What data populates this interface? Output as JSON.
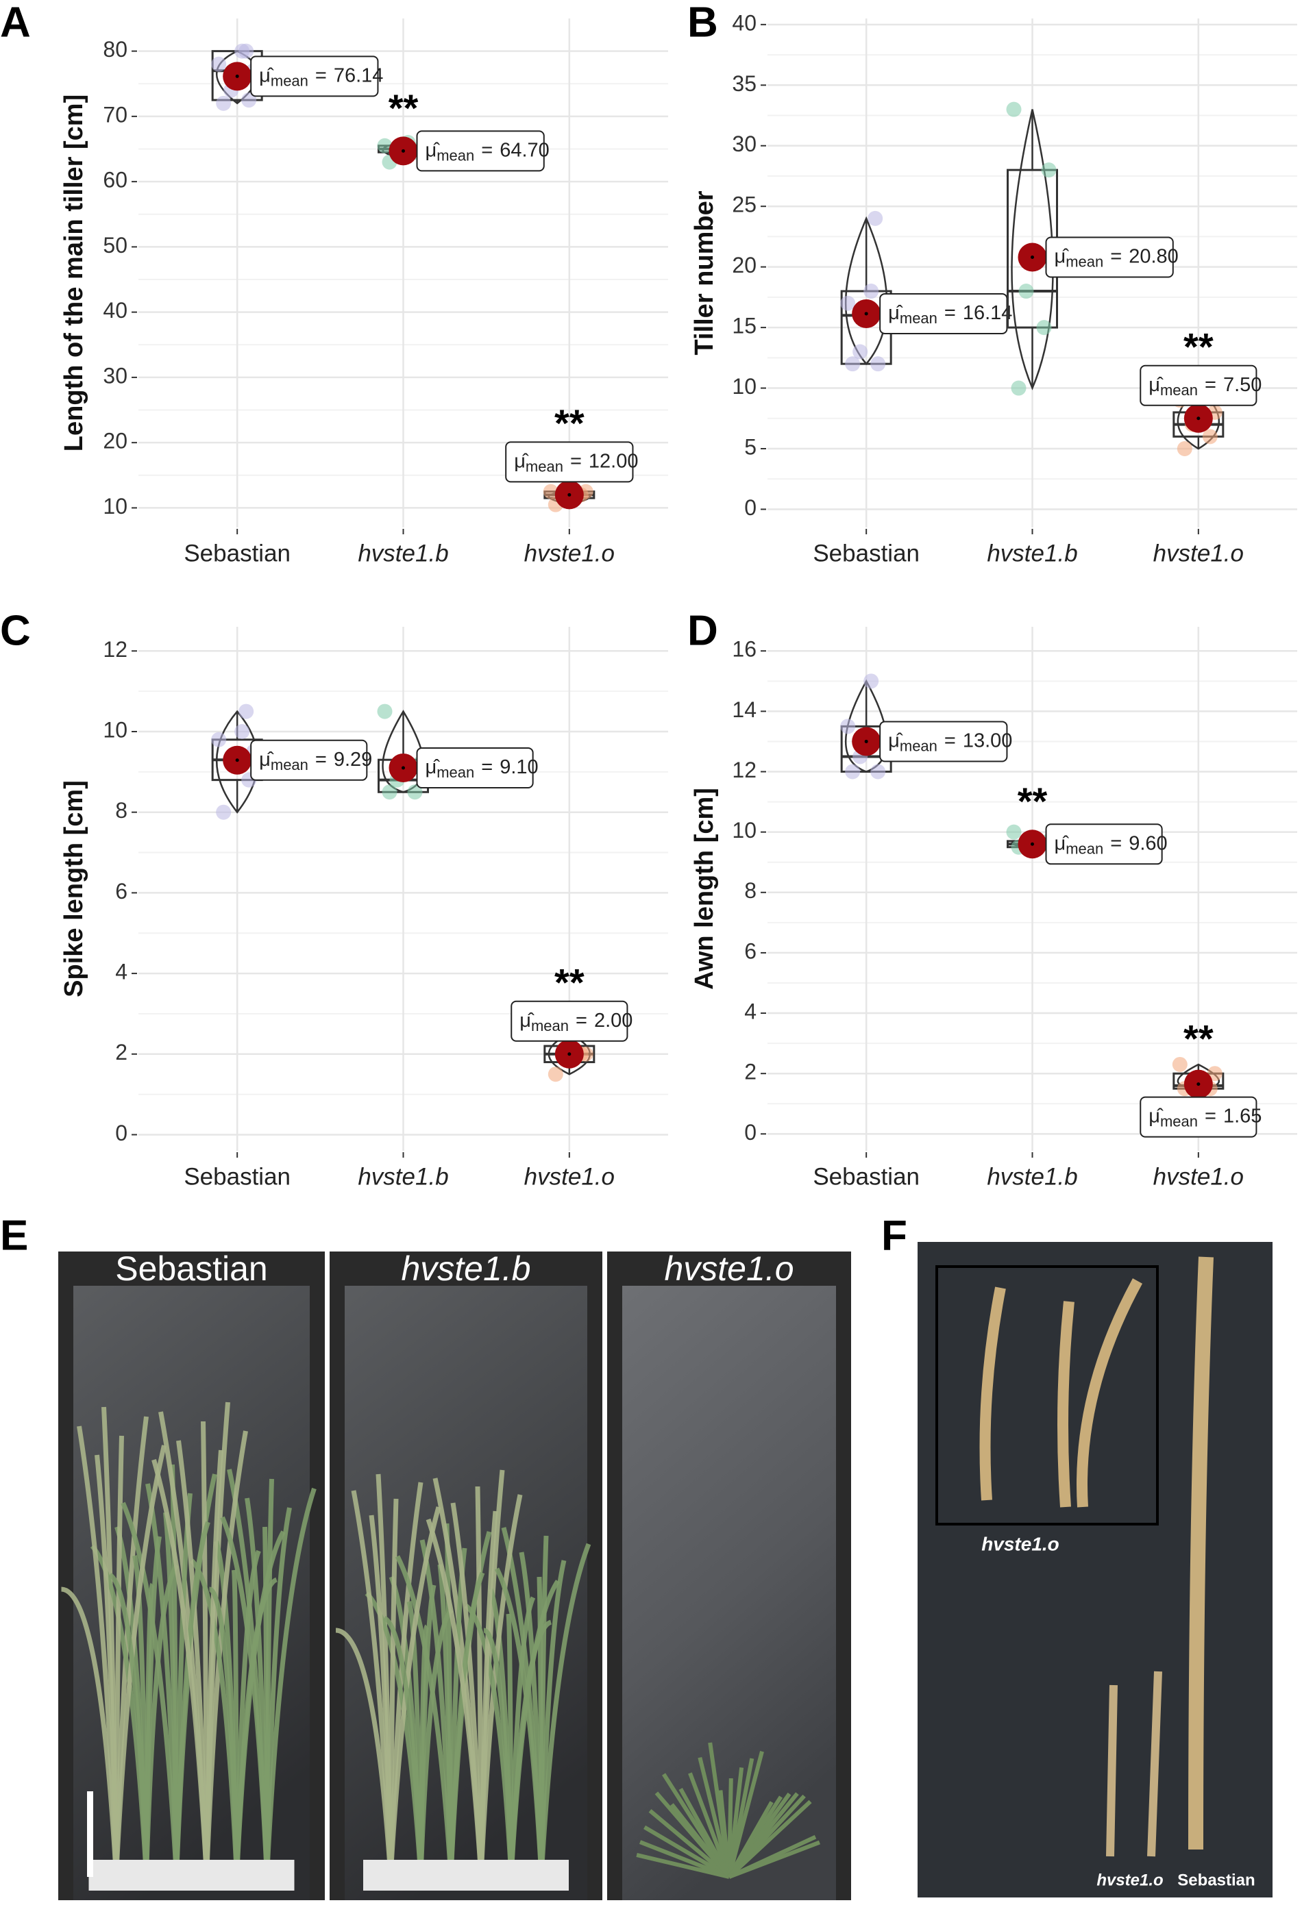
{
  "chart_data": [
    {
      "type": "box",
      "panel": "A",
      "ylabel": "Length of the main tiller [cm]",
      "categories": [
        "Sebastian",
        "hvste1.b",
        "hvste1.o"
      ],
      "values": [
        76.14,
        64.7,
        12
      ],
      "value_labels": [
        "76.14",
        "64.70",
        "12.00"
      ],
      "mean_symbol": "μ̂",
      "mean_subscript": "mean",
      "mean_equals": "=",
      "significance": [
        null,
        "**",
        "**"
      ],
      "boxes": [
        {
          "min": 72,
          "q1": 72.5,
          "median": 77,
          "q3": 80,
          "max": 80
        },
        {
          "min": 63.5,
          "q1": 64.5,
          "median": 65,
          "q3": 65.5,
          "max": 66
        },
        {
          "min": 10.5,
          "q1": 11.5,
          "median": 12,
          "q3": 12.5,
          "max": 12.5
        }
      ],
      "points": [
        [
          72,
          72.5,
          74,
          77,
          78,
          80,
          80
        ],
        [
          63,
          64.5,
          65,
          65,
          65.5,
          66
        ],
        [
          10.5,
          12,
          12,
          12.5,
          12.5
        ]
      ],
      "point_colors": [
        "#b9b6e2",
        "#7fcaa9",
        "#f2a67a"
      ],
      "mean_color": "#a3090f",
      "ylim": [
        7,
        85
      ],
      "yticks": [
        10,
        20,
        30,
        40,
        50,
        60,
        70,
        80
      ],
      "grid": true
    },
    {
      "type": "box",
      "panel": "B",
      "ylabel": "Tiller number",
      "categories": [
        "Sebastian",
        "hvste1.b",
        "hvste1.o"
      ],
      "values": [
        16.14,
        20.8,
        7.5
      ],
      "value_labels": [
        "16.14",
        "20.80",
        "7.50"
      ],
      "mean_symbol": "μ̂",
      "mean_subscript": "mean",
      "mean_equals": "=",
      "significance": [
        null,
        null,
        "**"
      ],
      "boxes": [
        {
          "min": 12,
          "q1": 12,
          "median": 16,
          "q3": 18,
          "max": 24
        },
        {
          "min": 10,
          "q1": 15,
          "median": 18,
          "q3": 28,
          "max": 33
        },
        {
          "min": 5,
          "q1": 6,
          "median": 7,
          "q3": 8,
          "max": 10
        }
      ],
      "points": [
        [
          12,
          12,
          13,
          16,
          17,
          18,
          24
        ],
        [
          10,
          15,
          18,
          28,
          33
        ],
        [
          5,
          6,
          7,
          8,
          9,
          10
        ]
      ],
      "point_colors": [
        "#b9b6e2",
        "#7fcaa9",
        "#f2a67a"
      ],
      "mean_color": "#a3090f",
      "ylim": [
        -1.5,
        40.5
      ],
      "yticks": [
        0,
        5,
        10,
        15,
        20,
        25,
        30,
        35,
        40
      ],
      "grid": true
    },
    {
      "type": "box",
      "panel": "C",
      "ylabel": "Spike length [cm]",
      "categories": [
        "Sebastian",
        "hvste1.b",
        "hvste1.o"
      ],
      "values": [
        9.29,
        9.1,
        2
      ],
      "value_labels": [
        "9.29",
        "9.10",
        "2.00"
      ],
      "mean_symbol": "μ̂",
      "mean_subscript": "mean",
      "mean_equals": "=",
      "significance": [
        null,
        null,
        "**"
      ],
      "boxes": [
        {
          "min": 8,
          "q1": 8.8,
          "median": 9.3,
          "q3": 9.8,
          "max": 10.5
        },
        {
          "min": 8.5,
          "q1": 8.5,
          "median": 8.8,
          "q3": 9.3,
          "max": 10.5
        },
        {
          "min": 1.5,
          "q1": 1.8,
          "median": 2,
          "q3": 2.2,
          "max": 2.5
        }
      ],
      "points": [
        [
          8,
          8.8,
          9.3,
          9.5,
          9.8,
          10,
          10.5
        ],
        [
          8.5,
          8.5,
          8.8,
          9.2,
          10.5
        ],
        [
          1.5,
          2,
          2,
          2,
          2.5
        ]
      ],
      "point_colors": [
        "#b9b6e2",
        "#7fcaa9",
        "#f2a67a"
      ],
      "mean_color": "#a3090f",
      "ylim": [
        -0.4,
        12.6
      ],
      "yticks": [
        0,
        2,
        4,
        6,
        8,
        10,
        12
      ],
      "grid": true
    },
    {
      "type": "box",
      "panel": "D",
      "ylabel": "Awn length [cm]",
      "categories": [
        "Sebastian",
        "hvste1.b",
        "hvste1.o"
      ],
      "values": [
        13,
        9.6,
        1.65
      ],
      "value_labels": [
        "13.00",
        "9.60",
        "1.65"
      ],
      "mean_symbol": "μ̂",
      "mean_subscript": "mean",
      "mean_equals": "=",
      "significance": [
        null,
        "**",
        "**"
      ],
      "boxes": [
        {
          "min": 12,
          "q1": 12,
          "median": 12.5,
          "q3": 13.5,
          "max": 15
        },
        {
          "min": 9.5,
          "q1": 9.5,
          "median": 9.6,
          "q3": 9.7,
          "max": 9.8
        },
        {
          "min": 1.5,
          "q1": 1.5,
          "median": 1.6,
          "q3": 2,
          "max": 2.3
        }
      ],
      "points": [
        [
          12,
          12,
          12.5,
          13,
          13.5,
          15
        ],
        [
          9.5,
          9.6,
          9.6,
          9.7,
          10
        ],
        [
          1.5,
          1.5,
          1.6,
          2,
          2.3
        ]
      ],
      "point_colors": [
        "#b9b6e2",
        "#7fcaa9",
        "#f2a67a"
      ],
      "mean_color": "#a3090f",
      "ylim": [
        -0.56,
        16.8
      ],
      "yticks": [
        0,
        2,
        4,
        6,
        8,
        10,
        12,
        14,
        16
      ],
      "grid": true
    }
  ],
  "photos": {
    "E": {
      "panel": "E",
      "labels": [
        "Sebastian",
        "hvste1.b",
        "hvste1.o"
      ]
    },
    "F": {
      "panel": "F",
      "inset_label": "hvste1.o",
      "labels": [
        "hvste1.o",
        "Sebastian"
      ]
    }
  }
}
